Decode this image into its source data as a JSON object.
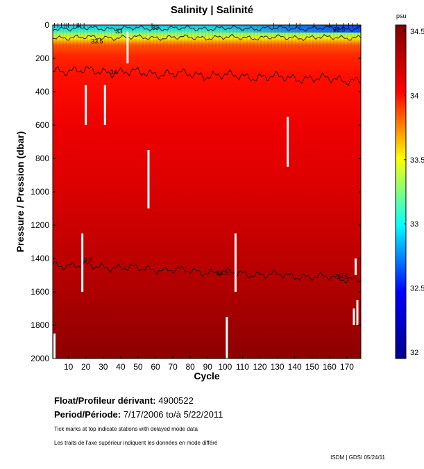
{
  "chart_data": {
    "type": "heatmap",
    "title": "Salinity | Salinité",
    "xlabel": "Cycle",
    "ylabel": "Pressure / Pression (dbar)",
    "xlim": [
      1,
      178
    ],
    "ylim": [
      0,
      2000
    ],
    "y_inverted": true,
    "x_ticks": [
      10,
      20,
      30,
      40,
      50,
      60,
      70,
      80,
      90,
      100,
      110,
      120,
      130,
      140,
      150,
      160,
      170
    ],
    "y_ticks": [
      0,
      200,
      400,
      600,
      800,
      1000,
      1200,
      1400,
      1600,
      1800,
      2000
    ],
    "colorbar": {
      "unit": "psu",
      "range": [
        31.95,
        34.55
      ],
      "ticks": [
        32,
        32.5,
        33,
        33.5,
        34,
        34.5
      ],
      "colormap": [
        "#00008f",
        "#0000ff",
        "#00ffff",
        "#ffff00",
        "#ff0000",
        "#800000"
      ]
    },
    "salinity_profile": [
      {
        "pressure": 0,
        "salinity": 32.9
      },
      {
        "pressure": 40,
        "salinity": 33.2
      },
      {
        "pressure": 80,
        "salinity": 33.55
      },
      {
        "pressure": 120,
        "salinity": 33.85
      },
      {
        "pressure": 180,
        "salinity": 33.95
      },
      {
        "pressure": 300,
        "salinity": 34.0
      },
      {
        "pressure": 600,
        "salinity": 34.1
      },
      {
        "pressure": 1000,
        "salinity": 34.18
      },
      {
        "pressure": 1400,
        "salinity": 34.3
      },
      {
        "pressure": 1700,
        "salinity": 34.4
      },
      {
        "pressure": 2000,
        "salinity": 34.5
      }
    ],
    "contours": [
      {
        "label": "33",
        "label_at": {
          "cycle": 44,
          "pressure": 50
        },
        "mean_pressure": 20
      },
      {
        "label": "33.5",
        "label_at": {
          "cycle": 27,
          "pressure": 70
        },
        "mean_pressure": 75
      },
      {
        "label": "34",
        "label_at": {
          "cycle": 33,
          "pressure": 295
        },
        "mean_pressure": 300
      },
      {
        "label": "34.5",
        "label_at": {
          "cycle": 98,
          "pressure": 1500
        },
        "mean_pressure": 1480
      }
    ],
    "contour_labels": [
      {
        "text": "33",
        "cycle": 37,
        "pressure": 50
      },
      {
        "text": "33",
        "cycle": 58,
        "pressure": 30
      },
      {
        "text": "32.5",
        "cycle": 162,
        "pressure": 40
      },
      {
        "text": "33.5",
        "cycle": 23,
        "pressure": 110
      },
      {
        "text": "34",
        "cycle": 34,
        "pressure": 295
      },
      {
        "text": "34.5",
        "cycle": 17,
        "pressure": 1420
      },
      {
        "text": "34.5",
        "cycle": 95,
        "pressure": 1500
      },
      {
        "text": "34.5",
        "cycle": 164,
        "pressure": 1520
      }
    ],
    "missing_data": [
      {
        "cycle": 20,
        "from": 360,
        "to": 600
      },
      {
        "cycle": 31,
        "from": 360,
        "to": 600
      },
      {
        "cycle": 44,
        "from": 40,
        "to": 230
      },
      {
        "cycle": 56,
        "from": 750,
        "to": 1100
      },
      {
        "cycle": 18,
        "from": 1250,
        "to": 1600
      },
      {
        "cycle": 106,
        "from": 1250,
        "to": 1600
      },
      {
        "cycle": 136,
        "from": 550,
        "to": 850
      },
      {
        "cycle": 101,
        "from": 1750,
        "to": 2000
      },
      {
        "cycle": 175,
        "from": 1400,
        "to": 1500
      },
      {
        "cycle": 174,
        "from": 1700,
        "to": 1800
      },
      {
        "cycle": 176,
        "from": 1650,
        "to": 1800
      },
      {
        "cycle": 2,
        "from": 1850,
        "to": 2000
      }
    ],
    "delayed_mode_tick_cycles": [
      2,
      4,
      6,
      8,
      9,
      10,
      13,
      15,
      16,
      17,
      19,
      58,
      128,
      137,
      141,
      143,
      151,
      160,
      164,
      168,
      171,
      173,
      176
    ]
  },
  "float_info": {
    "float_label": "Float/Profileur dérivant:",
    "float_id": "4900522",
    "period_label": "Period/Période:",
    "period_value": "7/17/2006  to/à  5/22/2011",
    "note_en": "Tick marks at top indicate stations with delayed mode data",
    "note_fr": "Les traits de l'axe supérieur indiquent les données en mode différé"
  },
  "credit": "ISDM | GDSI  05/24/11"
}
